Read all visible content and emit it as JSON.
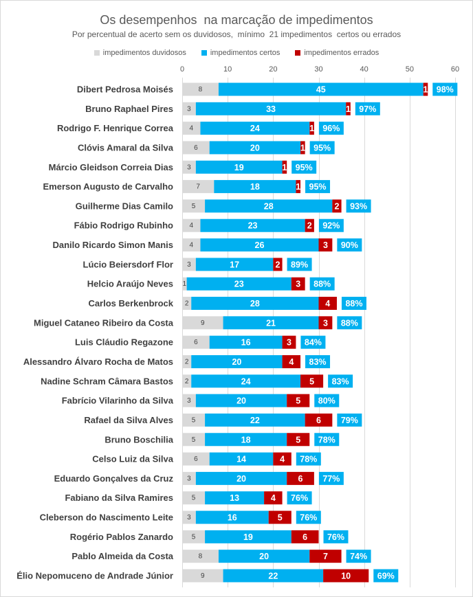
{
  "chart_data": {
    "type": "bar",
    "orientation": "horizontal",
    "stacked": true,
    "title": "Os desempenhos  na marcação de impedimentos",
    "subtitle": "Por percentual de acerto sem os duvidosos,  mínimo  21 impedimentos  certos ou errados",
    "xlim": [
      0,
      60
    ],
    "xticks": [
      0,
      10,
      20,
      30,
      40,
      50,
      60
    ],
    "grid": true,
    "legend_position": "top",
    "categories": [
      "Dibert Pedrosa Moisés",
      "Bruno Raphael Pires",
      "Rodrigo F. Henrique Correa",
      "Clóvis Amaral da Silva",
      "Márcio Gleidson Correia Dias",
      "Emerson Augusto de Carvalho",
      "Guilherme Dias Camilo",
      "Fábio Rodrigo Rubinho",
      "Danilo Ricardo Simon Manis",
      "Lúcio Beiersdorf Flor",
      "Helcio Araújo Neves",
      "Carlos Berkenbrock",
      "Miguel Cataneo Ribeiro da Costa",
      "Luis Cláudio Regazone",
      "Alessandro Álvaro Rocha de Matos",
      "Nadine Schram Câmara Bastos",
      "Fabrício Vilarinho da Silva",
      "Rafael da Silva Alves",
      "Bruno Boschilia",
      "Celso Luiz da Silva",
      "Eduardo Gonçalves da Cruz",
      "Fabiano da Silva Ramires",
      "Cleberson do Nascimento Leite",
      "Rogério Pablos Zanardo",
      "Pablo Almeida da Costa",
      "Élio Nepomuceno de Andrade Júnior"
    ],
    "series": [
      {
        "name": "impedimentos duvidosos",
        "color": "#d9d9d9",
        "label_color": "#404040",
        "values": [
          8,
          3,
          4,
          6,
          3,
          7,
          5,
          4,
          4,
          3,
          1,
          2,
          9,
          6,
          2,
          2,
          3,
          5,
          5,
          6,
          3,
          5,
          3,
          5,
          8,
          9
        ]
      },
      {
        "name": "impedimentos certos",
        "color": "#00b0f0",
        "label_color": "#ffffff",
        "values": [
          45,
          33,
          24,
          20,
          19,
          18,
          28,
          23,
          26,
          17,
          23,
          28,
          21,
          16,
          20,
          24,
          20,
          22,
          18,
          14,
          20,
          13,
          16,
          19,
          20,
          22
        ]
      },
      {
        "name": "impedimentos errados",
        "color": "#c00000",
        "label_color": "#ffffff",
        "values": [
          1,
          1,
          1,
          1,
          1,
          1,
          2,
          2,
          3,
          2,
          3,
          4,
          3,
          3,
          4,
          5,
          5,
          6,
          5,
          4,
          6,
          4,
          5,
          6,
          7,
          10
        ]
      }
    ],
    "accuracy_labels": [
      "98%",
      "97%",
      "96%",
      "95%",
      "95%",
      "95%",
      "93%",
      "92%",
      "90%",
      "89%",
      "88%",
      "88%",
      "88%",
      "84%",
      "83%",
      "83%",
      "80%",
      "79%",
      "78%",
      "78%",
      "77%",
      "76%",
      "76%",
      "76%",
      "74%",
      "69%"
    ],
    "accuracy_label_color": "#00b0f0"
  }
}
